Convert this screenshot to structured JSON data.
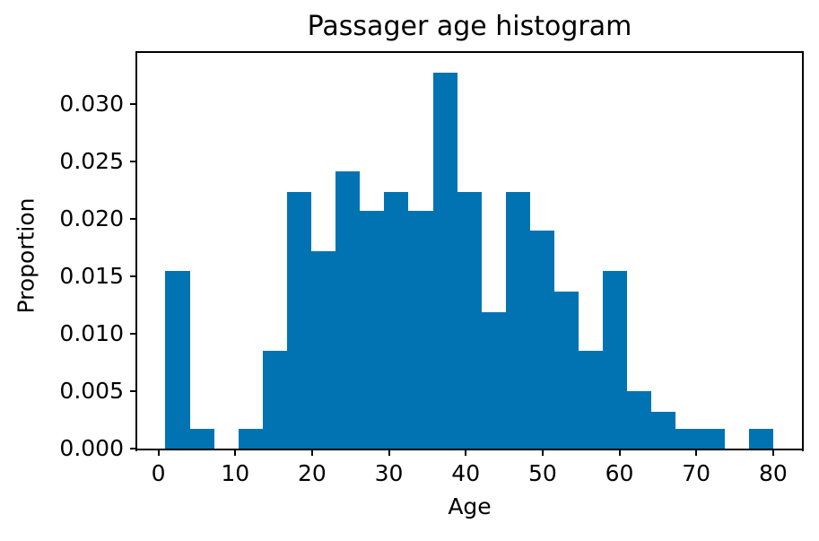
{
  "chart_data": {
    "type": "bar",
    "subtype": "histogram",
    "title": "Passager age histogram",
    "xlabel": "Age",
    "ylabel": "Proportion",
    "bar_color": "#0173b2",
    "grid": false,
    "legend": null,
    "xlim": [
      -2.87,
      83.87
    ],
    "ylim": [
      0,
      0.03457
    ],
    "xticks": [
      0,
      10,
      20,
      30,
      40,
      50,
      60,
      70,
      80
    ],
    "xtick_labels": [
      "0",
      "10",
      "20",
      "30",
      "40",
      "50",
      "60",
      "70",
      "80"
    ],
    "yticks": [
      0.0,
      0.005,
      0.01,
      0.015,
      0.02,
      0.025,
      0.03
    ],
    "ytick_labels": [
      "0.000",
      "0.005",
      "0.010",
      "0.015",
      "0.020",
      "0.025",
      "0.030"
    ],
    "bin_edges": [
      0.92,
      4.08,
      7.25,
      10.41,
      13.57,
      16.74,
      19.9,
      23.06,
      26.23,
      29.39,
      32.55,
      35.72,
      38.88,
      42.04,
      45.21,
      48.37,
      51.53,
      54.7,
      57.86,
      61.02,
      64.19,
      67.35,
      70.51,
      73.68,
      76.84,
      80.0
    ],
    "values": [
      0.0155,
      0.0017,
      0,
      0.0017,
      0.0085,
      0.0224,
      0.0172,
      0.0242,
      0.0207,
      0.0224,
      0.0207,
      0.0328,
      0.0224,
      0.0119,
      0.0224,
      0.019,
      0.0137,
      0.0085,
      0.0155,
      0.005,
      0.0032,
      0.0017,
      0.0017,
      0,
      0.0017
    ]
  }
}
